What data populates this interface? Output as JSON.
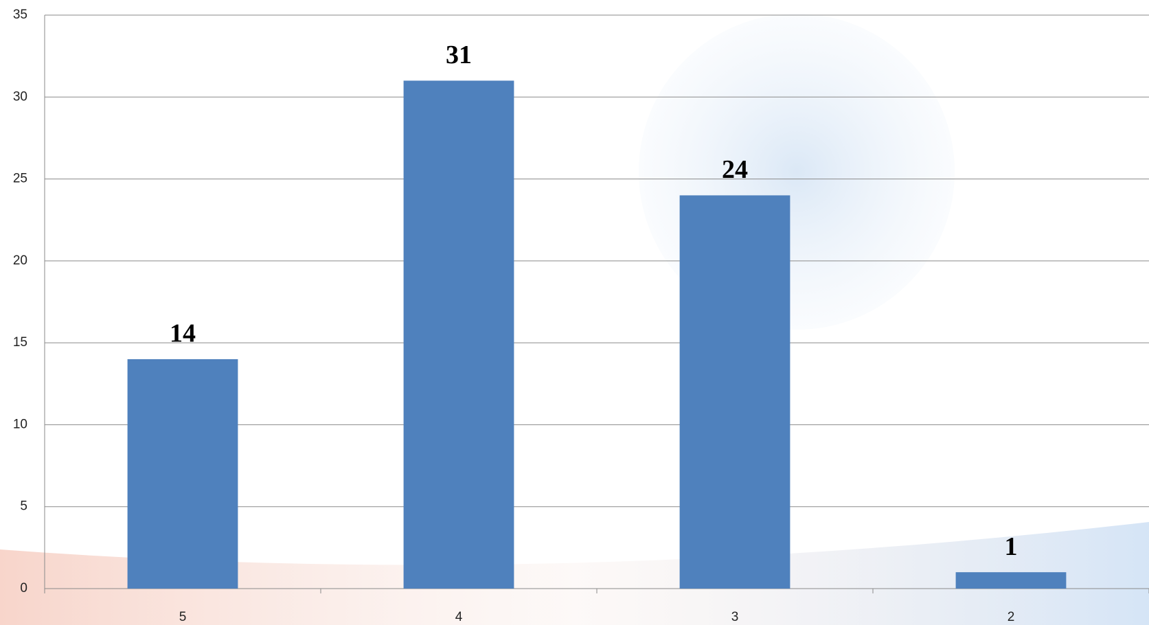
{
  "chart_data": {
    "type": "bar",
    "categories": [
      "5",
      "4",
      "3",
      "2"
    ],
    "values": [
      14,
      31,
      24,
      1
    ],
    "color": "#4f81bd",
    "ylim": [
      0,
      35
    ],
    "yticks": [
      0,
      5,
      10,
      15,
      20,
      25,
      30,
      35
    ],
    "grid": true
  }
}
